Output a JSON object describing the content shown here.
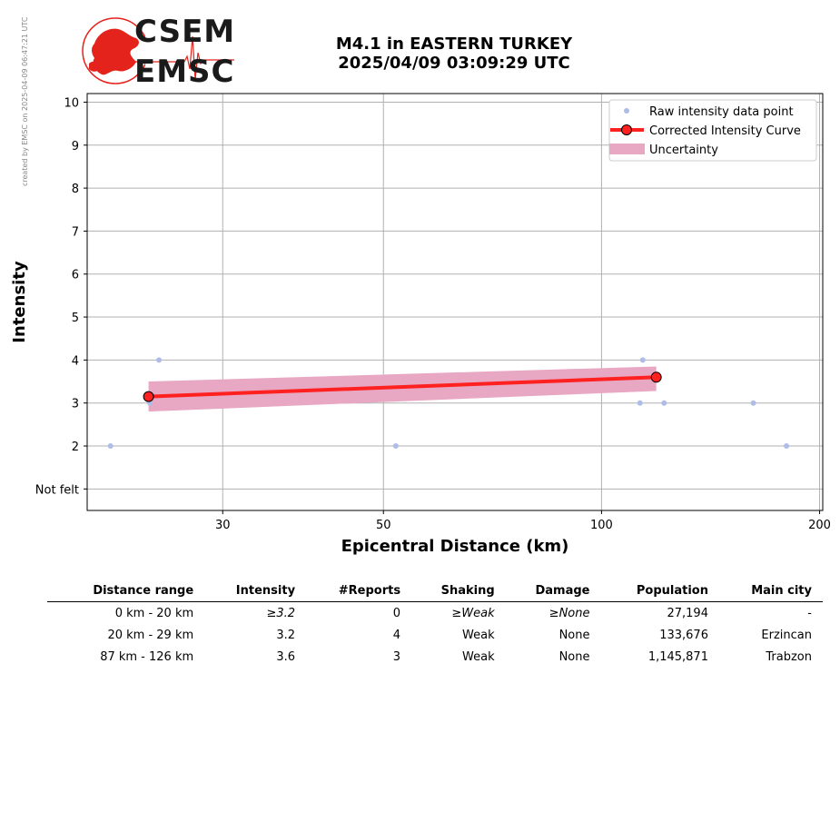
{
  "side_note": "created by EMSC on 2025-04-09 06:47:21 UTC",
  "logo": {
    "line1": "CSEM",
    "line2": "EMSC"
  },
  "title": {
    "line1": "M4.1 in EASTERN TURKEY",
    "line2": "2025/04/09 03:09:29 UTC"
  },
  "colors": {
    "raw": "#aebde8",
    "curve": "#ff2020",
    "uncertainty": "#e8a8c4",
    "grid": "#b0b0b0"
  },
  "chart_data": {
    "type": "scatter",
    "xlabel": "Epicentral Distance (km)",
    "ylabel": "Intensity",
    "x_scale": "log",
    "xlim": [
      19.5,
      202
    ],
    "ylim": [
      0.5,
      10.2
    ],
    "x_ticks": [
      30,
      50,
      100,
      200
    ],
    "x_tick_labels": [
      "30",
      "50",
      "100",
      "200"
    ],
    "y_ticks": [
      1,
      2,
      3,
      4,
      5,
      6,
      7,
      8,
      9,
      10
    ],
    "y_tick_labels": [
      "Not felt",
      "2",
      "3",
      "4",
      "5",
      "6",
      "7",
      "8",
      "9",
      "10"
    ],
    "grid": true,
    "legend_position": "top-right",
    "series": [
      {
        "name": "Raw intensity data point",
        "kind": "scatter",
        "x": [
          21,
          24.5,
          23.8,
          52,
          114,
          113,
          122,
          162,
          180
        ],
        "y": [
          2,
          4,
          3,
          2,
          4,
          3,
          3,
          3,
          2
        ]
      },
      {
        "name": "Corrected Intensity Curve",
        "kind": "line",
        "x": [
          23.7,
          119
        ],
        "y": [
          3.15,
          3.6
        ]
      },
      {
        "name": "Uncertainty",
        "kind": "band",
        "x": [
          23.7,
          119
        ],
        "y_low": [
          2.8,
          3.28
        ],
        "y_high": [
          3.5,
          3.85
        ]
      }
    ]
  },
  "table": {
    "headers": [
      "Distance range",
      "Intensity",
      "#Reports",
      "Shaking",
      "Damage",
      "Population",
      "Main city"
    ],
    "rows": [
      [
        "0 km -   20 km",
        "≥3.2",
        "0",
        "≥Weak",
        "≥None",
        "27,194",
        "-"
      ],
      [
        "20 km -   29 km",
        "3.2",
        "4",
        "Weak",
        "None",
        "133,676",
        "Erzincan"
      ],
      [
        "87 km -  126 km",
        "3.6",
        "3",
        "Weak",
        "None",
        "1,145,871",
        "Trabzon"
      ]
    ]
  }
}
